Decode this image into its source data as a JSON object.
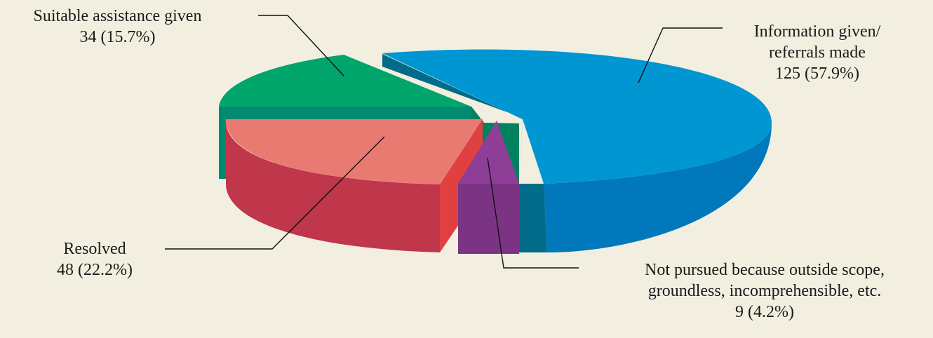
{
  "chart_data": {
    "type": "pie",
    "title": "",
    "slices": [
      {
        "key": "info",
        "label_lines": [
          "Information given/",
          "referrals made"
        ],
        "value_text": "125 (57.9%)",
        "value": 125,
        "percent": 57.9,
        "top_color": "#0096d2",
        "side_color": "#0078bb",
        "cut_color": "#006c8a"
      },
      {
        "key": "notpursued",
        "label_lines": [
          "Not pursued because outside scope,",
          "groundless, incomprehensible, etc."
        ],
        "value_text": "9 (4.2%)",
        "value": 9,
        "percent": 4.2,
        "top_color": "#8e3e96",
        "side_color": "#7b3483",
        "cut_color": "#6d2c76"
      },
      {
        "key": "resolved",
        "label_lines": [
          "Resolved"
        ],
        "value_text": "48 (22.2%)",
        "value": 48,
        "percent": 22.2,
        "top_color": "#e87a72",
        "side_color": "#c0364b",
        "cut_color": "#e04040"
      },
      {
        "key": "suitable",
        "label_lines": [
          "Suitable assistance given"
        ],
        "value_text": "34 (15.7%)",
        "value": 34,
        "percent": 15.7,
        "top_color": "#00a56b",
        "side_color": "#008a70",
        "cut_color": "#00825f"
      }
    ],
    "legend": "none",
    "style": "3d-exploded"
  }
}
